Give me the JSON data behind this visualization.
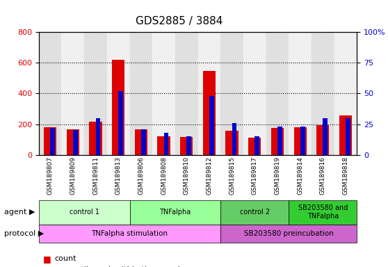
{
  "title": "GDS2885 / 3884",
  "samples": [
    "GSM189807",
    "GSM189809",
    "GSM189811",
    "GSM189813",
    "GSM189806",
    "GSM189808",
    "GSM189810",
    "GSM189812",
    "GSM189815",
    "GSM189817",
    "GSM189819",
    "GSM189814",
    "GSM189816",
    "GSM189818"
  ],
  "count": [
    180,
    165,
    215,
    620,
    165,
    120,
    115,
    545,
    155,
    110,
    175,
    180,
    195,
    258
  ],
  "percentile": [
    22,
    20,
    30,
    52,
    21,
    18,
    15,
    48,
    26,
    15,
    23,
    23,
    30,
    30
  ],
  "red": "#dd0000",
  "blue": "#0000cc",
  "ylim_left": [
    0,
    800
  ],
  "ylim_right": [
    0,
    100
  ],
  "yticks_left": [
    0,
    200,
    400,
    600,
    800
  ],
  "yticks_right": [
    0,
    25,
    50,
    75,
    100
  ],
  "ytick_labels_right": [
    "0",
    "25",
    "50",
    "75",
    "100%"
  ],
  "agent_groups": [
    {
      "label": "control 1",
      "start": 0,
      "end": 4,
      "color": "#ccffcc"
    },
    {
      "label": "TNFalpha",
      "start": 4,
      "end": 8,
      "color": "#99ff99"
    },
    {
      "label": "control 2",
      "start": 8,
      "end": 11,
      "color": "#66cc66"
    },
    {
      "label": "SB203580 and\nTNFalpha",
      "start": 11,
      "end": 14,
      "color": "#33cc33"
    }
  ],
  "protocol_groups": [
    {
      "label": "TNFalpha stimulation",
      "start": 0,
      "end": 8,
      "color": "#ff99ff"
    },
    {
      "label": "SB203580 preincubation",
      "start": 8,
      "end": 14,
      "color": "#cc66cc"
    }
  ],
  "bg_color": "#f0f0f0",
  "grid_color": "#000000",
  "bar_width": 0.35
}
